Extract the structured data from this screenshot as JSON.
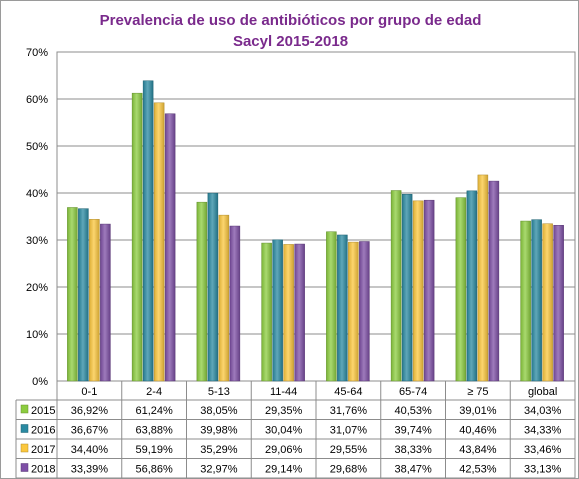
{
  "chart_data": {
    "type": "bar",
    "title": "Prevalencia de uso de antibióticos por grupo de edad",
    "subtitle": "Sacyl 2015-2018",
    "categories": [
      "0-1",
      "2-4",
      "5-13",
      "11-44",
      "45-64",
      "65-74",
      "≥ 75",
      "global"
    ],
    "ylim": [
      0,
      70
    ],
    "yticks": [
      "0%",
      "10%",
      "20%",
      "30%",
      "40%",
      "50%",
      "60%",
      "70%"
    ],
    "yaxis_unit": "%",
    "grid": true,
    "legend": "data-table",
    "series": [
      {
        "name": "2015",
        "color": "#8ccc3f",
        "values": [
          36.92,
          61.24,
          38.05,
          29.35,
          31.76,
          40.53,
          39.01,
          34.03
        ],
        "labels": [
          "36,92%",
          "61,24%",
          "38,05%",
          "29,35%",
          "31,76%",
          "40,53%",
          "39,01%",
          "34,03%"
        ]
      },
      {
        "name": "2016",
        "color": "#2a8aa2",
        "values": [
          36.67,
          63.88,
          39.98,
          30.04,
          31.07,
          39.74,
          40.46,
          34.33
        ],
        "labels": [
          "36,67%",
          "63,88%",
          "39,98%",
          "30,04%",
          "31,07%",
          "39,74%",
          "40,46%",
          "34,33%"
        ]
      },
      {
        "name": "2017",
        "color": "#fbc73d",
        "values": [
          34.4,
          59.19,
          35.29,
          29.06,
          29.55,
          38.33,
          43.84,
          33.46
        ],
        "labels": [
          "34,40%",
          "59,19%",
          "35,29%",
          "29,06%",
          "29,55%",
          "38,33%",
          "43,84%",
          "33,46%"
        ]
      },
      {
        "name": "2018",
        "color": "#7e4fa6",
        "values": [
          33.39,
          56.86,
          32.97,
          29.14,
          29.68,
          38.47,
          42.53,
          33.13
        ],
        "labels": [
          "33,39%",
          "56,86%",
          "32,97%",
          "29,14%",
          "29,68%",
          "38,47%",
          "42,53%",
          "33,13%"
        ]
      }
    ]
  }
}
